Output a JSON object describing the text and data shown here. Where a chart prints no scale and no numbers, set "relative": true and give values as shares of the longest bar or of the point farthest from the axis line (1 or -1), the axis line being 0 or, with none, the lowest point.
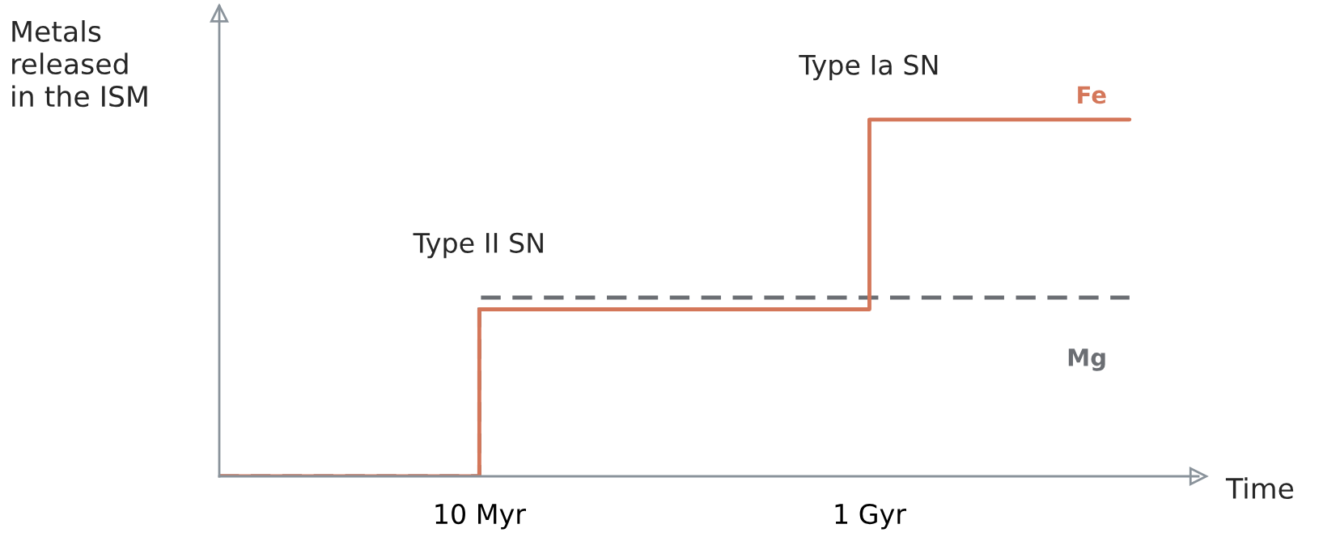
{
  "chart_data": {
    "type": "step",
    "relative": true,
    "xlabel": "Time",
    "ylabel": "Metals\nreleased\nin the ISM",
    "categories": [
      null,
      null,
      "10 Myr",
      null,
      null,
      "1 Gyr",
      null,
      null
    ],
    "series": [
      {
        "name": "Mg",
        "color": "#6b6e73",
        "line_style": "dashed",
        "values": [
          0,
          0,
          0.501,
          0.501,
          0.501,
          0.501,
          0.501,
          0.501
        ]
      },
      {
        "name": "Fe",
        "color": "#d4775a",
        "line_style": "solid",
        "values": [
          0,
          0,
          0.468,
          0.468,
          0.468,
          1,
          1,
          1
        ]
      }
    ],
    "annotations": [
      {
        "text": "Type II SN",
        "x": "10 Myr",
        "y": 0.501
      },
      {
        "text": "Type Ia SN",
        "x": "1 Gyr",
        "y": 1
      }
    ],
    "grid": false,
    "legend": false
  }
}
